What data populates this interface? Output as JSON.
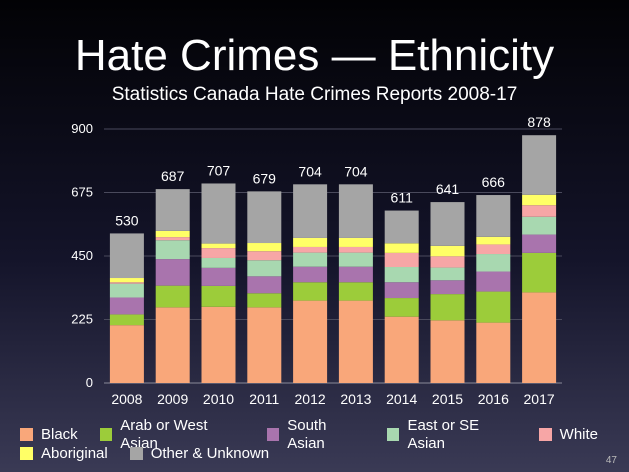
{
  "slide": {
    "title": "Hate Crimes — Ethnicity",
    "subtitle": "Statistics Canada Hate Crimes Reports 2008-17",
    "number": "47"
  },
  "chart_data": {
    "type": "bar",
    "stacked": true,
    "categories": [
      "2008",
      "2009",
      "2010",
      "2011",
      "2012",
      "2013",
      "2014",
      "2015",
      "2016",
      "2017"
    ],
    "totals": [
      530,
      687,
      707,
      679,
      704,
      704,
      611,
      641,
      666,
      878
    ],
    "ylim": [
      0,
      900
    ],
    "yticks": [
      0,
      225,
      450,
      675,
      900
    ],
    "grid": true,
    "legend_position": "bottom",
    "series": [
      {
        "name": "Black",
        "color": "#f9a77a",
        "values": [
          205,
          268,
          270,
          268,
          292,
          292,
          235,
          222,
          214,
          321
        ]
      },
      {
        "name": "Arab or West Asian",
        "color": "#9ccc3a",
        "values": [
          38,
          77,
          74,
          50,
          65,
          65,
          66,
          93,
          110,
          140
        ]
      },
      {
        "name": "South Asian",
        "color": "#a974ad",
        "values": [
          60,
          94,
          64,
          60,
          55,
          55,
          56,
          49,
          71,
          65
        ]
      },
      {
        "name": "East or SE Asian",
        "color": "#a8d8b0",
        "values": [
          49,
          67,
          35,
          57,
          50,
          50,
          54,
          45,
          62,
          63
        ]
      },
      {
        "name": "White",
        "color": "#f7a6a6",
        "values": [
          5,
          11,
          35,
          32,
          20,
          20,
          50,
          40,
          34,
          41
        ]
      },
      {
        "name": "Aboriginal",
        "color": "#ffff66",
        "values": [
          15,
          22,
          16,
          29,
          32,
          32,
          34,
          37,
          27,
          37
        ]
      },
      {
        "name": "Other & Unknown",
        "color": "#a5a5a5",
        "values": [
          158,
          148,
          213,
          183,
          190,
          190,
          116,
          155,
          148,
          211
        ]
      }
    ]
  }
}
